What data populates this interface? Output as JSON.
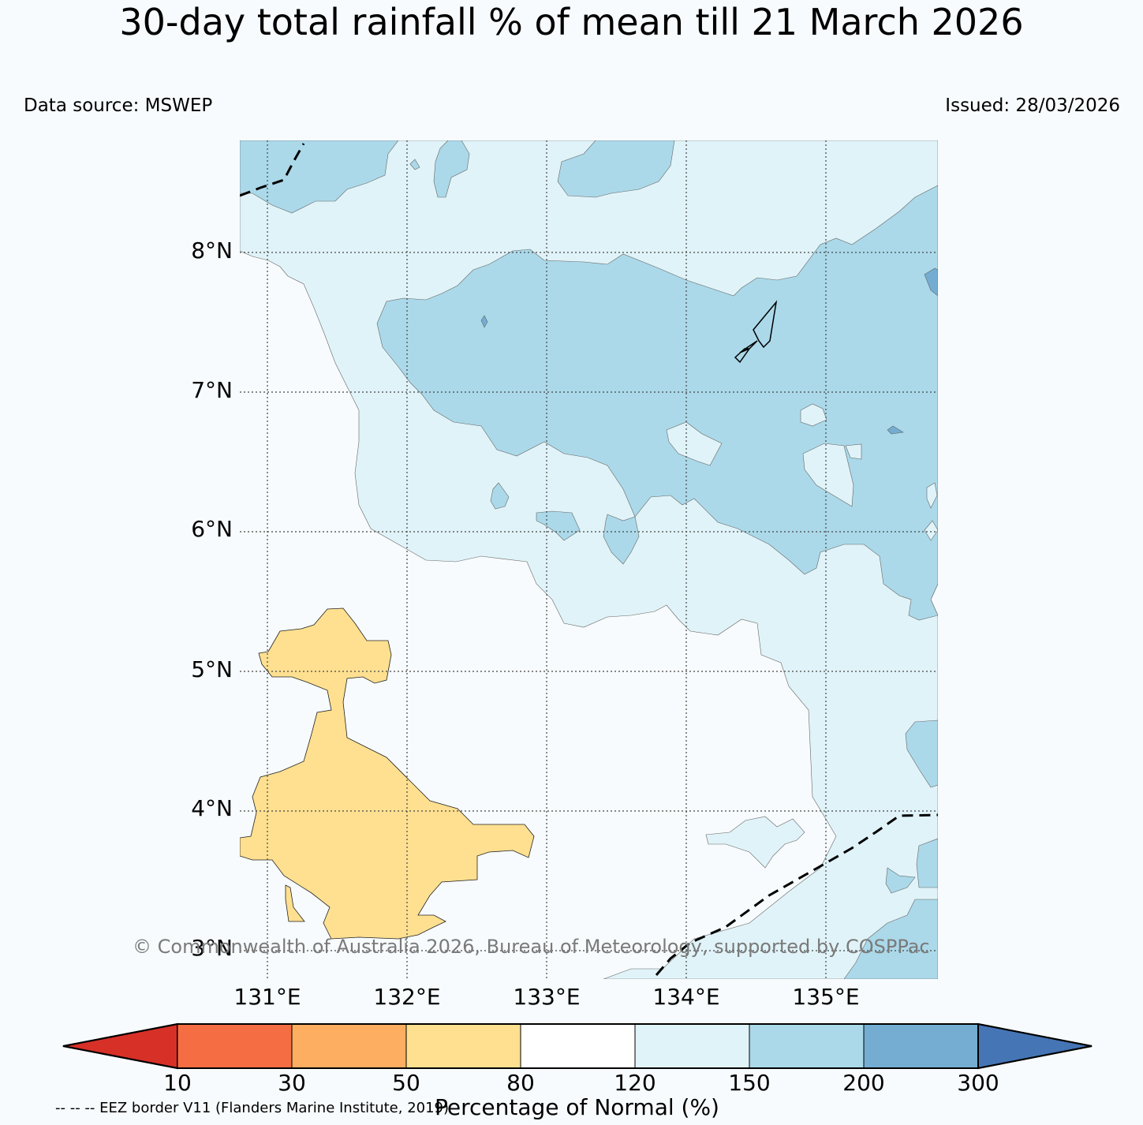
{
  "title": "30-day total rainfall % of mean till 21 March 2026",
  "data_source": "Data source: MSWEP",
  "issued": "Issued: 28/03/2026",
  "copyright": "© Commonwealth of Australia 2026, Bureau of Meteorology, supported by COSPPac",
  "eez_note": "-- -- -- EEZ border V11 (Flanders Marine Institute, 2019)",
  "map": {
    "lat_labels": [
      "8°N",
      "7°N",
      "6°N",
      "5°N",
      "4°N",
      "3°N"
    ],
    "lon_labels": [
      "131°E",
      "132°E",
      "133°E",
      "134°E",
      "135°E"
    ]
  },
  "colorbar": {
    "title": "Percentage of Normal (%)",
    "ticks": [
      "10",
      "30",
      "50",
      "80",
      "120",
      "150",
      "200",
      "300"
    ],
    "colors": [
      "#d73027",
      "#f46d43",
      "#fdae61",
      "#fee090",
      "#ffffff",
      "#e0f3f8",
      "#abd9e9",
      "#74add1",
      "#4575b4"
    ]
  },
  "map_colors": {
    "background": "#f7fbfd",
    "band_80_120": "#f7fbfd",
    "band_120_150": "#e0f3f8",
    "band_150_200": "#abd9e9",
    "band_200_300": "#74add1",
    "band_50_80": "#fee090"
  }
}
